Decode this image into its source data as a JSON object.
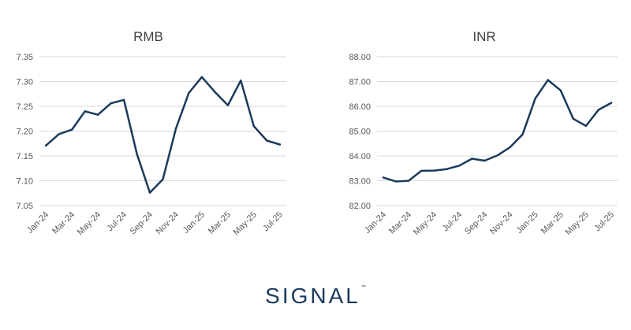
{
  "chart_data": [
    {
      "type": "line",
      "title": "RMB",
      "categories": [
        "Jan-24",
        "Feb-24",
        "Mar-24",
        "Apr-24",
        "May-24",
        "Jun-24",
        "Jul-24",
        "Aug-24",
        "Sep-24",
        "Oct-24",
        "Nov-24",
        "Dec-24",
        "Jan-25",
        "Feb-25",
        "Mar-25",
        "Apr-25",
        "May-25",
        "Jun-25",
        "Jul-25"
      ],
      "tick_labels": [
        "Jan-24",
        "Mar-24",
        "May-24",
        "Jul-24",
        "Sep-24",
        "Nov-24",
        "Jan-25",
        "Mar-25",
        "May-25",
        "Jul-25"
      ],
      "values": [
        7.171,
        7.194,
        7.203,
        7.24,
        7.233,
        7.256,
        7.263,
        7.154,
        7.076,
        7.103,
        7.205,
        7.277,
        7.309,
        7.279,
        7.252,
        7.302,
        7.21,
        7.181,
        7.173
      ],
      "ylim": [
        7.05,
        7.35
      ],
      "yticks": [
        "7.05",
        "7.10",
        "7.15",
        "7.20",
        "7.25",
        "7.30",
        "7.35"
      ],
      "grid": true,
      "color": "#1b3a5c"
    },
    {
      "type": "line",
      "title": "INR",
      "categories": [
        "Jan-24",
        "Feb-24",
        "Mar-24",
        "Apr-24",
        "May-24",
        "Jun-24",
        "Jul-24",
        "Aug-24",
        "Sep-24",
        "Oct-24",
        "Nov-24",
        "Dec-24",
        "Jan-25",
        "Feb-25",
        "Mar-25",
        "Apr-25",
        "May-25",
        "Jun-25",
        "Jul-25"
      ],
      "tick_labels": [
        "Jan-24",
        "Mar-24",
        "May-24",
        "Jul-24",
        "Sep-24",
        "Nov-24",
        "Jan-25",
        "Mar-25",
        "May-25",
        "Jul-25"
      ],
      "values": [
        83.13,
        82.97,
        83.0,
        83.4,
        83.41,
        83.47,
        83.61,
        83.89,
        83.81,
        84.02,
        84.35,
        84.87,
        86.32,
        87.06,
        86.64,
        85.5,
        85.21,
        85.86,
        86.14
      ],
      "ylim": [
        82.0,
        88.0
      ],
      "yticks": [
        "82.00",
        "83.00",
        "84.00",
        "85.00",
        "86.00",
        "87.00",
        "88.00"
      ],
      "grid": true,
      "color": "#1b3a5c"
    }
  ],
  "logo": {
    "text": "SIGNAL",
    "mark": "™"
  }
}
